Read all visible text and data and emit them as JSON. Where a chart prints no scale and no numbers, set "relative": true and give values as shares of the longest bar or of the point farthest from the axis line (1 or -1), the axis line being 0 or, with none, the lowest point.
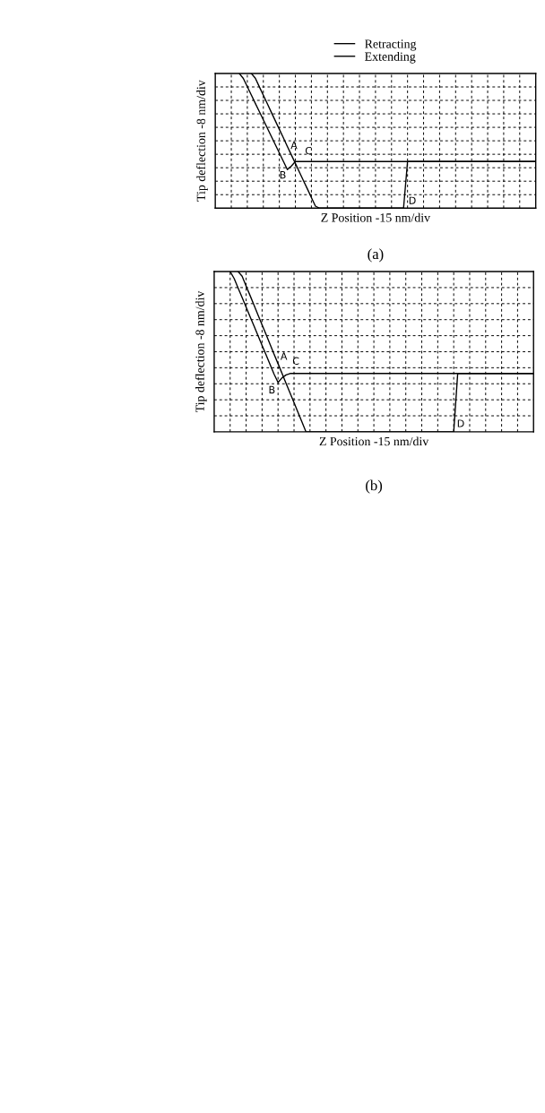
{
  "chart_data": [
    {
      "type": "line",
      "xlabel": "Z Position -15 nm/div",
      "ylabel": "Tip deflection -8 nm/div",
      "relative": true,
      "tick_labels": false,
      "grid": true,
      "legend": "top",
      "line_style": "solid",
      "categories": [
        null,
        null,
        null,
        null,
        null,
        null,
        null,
        null,
        null,
        null,
        null,
        null,
        null,
        null,
        null,
        null,
        null,
        null,
        null,
        null,
        null,
        null,
        null,
        null,
        null,
        null,
        null,
        null,
        null,
        null,
        null,
        null,
        null,
        null,
        null,
        null,
        null,
        null,
        null,
        null,
        null,
        null,
        null,
        null,
        null,
        null,
        null,
        null,
        null,
        null,
        null,
        null,
        null,
        null,
        null,
        null,
        null,
        null,
        null,
        null,
        null,
        null,
        null,
        null,
        null,
        null,
        null,
        null,
        null,
        null,
        null,
        null,
        null,
        null,
        null,
        null,
        null,
        null,
        null,
        null,
        null
      ],
      "series": [
        {
          "name": "Retracting",
          "color": "#000000",
          "values": [
            null,
            null,
            null,
            null,
            null,
            null,
            null,
            null,
            null,
            1.0,
            0.965,
            0.901,
            0.838,
            0.775,
            0.711,
            0.648,
            0.585,
            0.522,
            0.458,
            0.395,
            0.332,
            0.268,
            0.205,
            0.142,
            0.078,
            0.015,
            0,
            0,
            0,
            0,
            0,
            0,
            0,
            0,
            0,
            0,
            0,
            0,
            0,
            0,
            0,
            0,
            0,
            0,
            0,
            0,
            0,
            0,
            0.346,
            0.346,
            0.346,
            0.346,
            0.346,
            0.346,
            0.346,
            0.346,
            0.346,
            0.346,
            0.346,
            0.346,
            0.346,
            0.346,
            0.346,
            0.346,
            0.346,
            0.346,
            0.346,
            0.346,
            0.346,
            0.346,
            0.346,
            0.346,
            0.346,
            0.346,
            0.346,
            0.346,
            0.346,
            0.346,
            0.346,
            0.346,
            0.346
          ]
        },
        {
          "name": "Extending",
          "color": "#000000",
          "values": [
            null,
            null,
            null,
            null,
            null,
            null,
            1.0,
            0.963,
            0.902,
            0.84,
            0.778,
            0.717,
            0.655,
            0.594,
            0.532,
            0.471,
            0.409,
            0.348,
            0.286,
            0.313,
            0.346,
            0.346,
            0.346,
            0.346,
            0.346,
            0.346,
            0.346,
            0.346,
            0.346,
            0.346,
            0.346,
            0.346,
            0.346,
            0.346,
            0.346,
            0.346,
            0.346,
            0.346,
            0.346,
            0.346,
            0.346,
            0.346,
            0.346,
            0.346,
            0.346,
            0.346,
            0.346,
            0.346,
            0.346,
            0.346,
            0.346,
            0.346,
            0.346,
            0.346,
            0.346,
            0.346,
            0.346,
            0.346,
            0.346,
            0.346,
            0.346,
            0.346,
            0.346,
            0.346,
            0.346,
            0.346,
            0.346,
            0.346,
            0.346,
            0.346,
            0.346,
            0.346,
            0.346,
            0.346,
            0.346,
            0.346,
            0.346,
            0.346,
            0.346,
            0.346,
            0.346
          ]
        }
      ],
      "annotations": [
        "A",
        "B",
        "C",
        "D",
        "(a)"
      ]
    },
    {
      "type": "line",
      "xlabel": "Z Position -15 nm/div",
      "ylabel": "Tip deflection -8 nm/div",
      "relative": true,
      "tick_labels": false,
      "grid": true,
      "line_style": "solid",
      "categories": [
        null,
        null,
        null,
        null,
        null,
        null,
        null,
        null,
        null,
        null,
        null,
        null,
        null,
        null,
        null,
        null,
        null,
        null,
        null,
        null,
        null,
        null,
        null,
        null,
        null,
        null,
        null,
        null,
        null,
        null,
        null,
        null,
        null,
        null,
        null,
        null,
        null,
        null,
        null,
        null,
        null,
        null,
        null,
        null,
        null,
        null,
        null,
        null,
        null,
        null,
        null,
        null,
        null,
        null,
        null,
        null,
        null,
        null,
        null,
        null,
        null,
        null,
        null,
        null,
        null,
        null,
        null,
        null,
        null,
        null,
        null,
        null,
        null,
        null,
        null,
        null,
        null,
        null,
        null,
        null,
        null
      ],
      "series": [
        {
          "color": "#000000",
          "values": [
            null,
            null,
            null,
            null,
            null,
            null,
            1.0,
            0.971,
            0.91,
            0.85,
            0.789,
            0.728,
            0.668,
            0.607,
            0.546,
            0.485,
            0.425,
            0.364,
            0.303,
            0.243,
            0.182,
            0.121,
            0.061,
            0,
            0,
            0,
            0,
            0,
            0,
            0,
            0,
            0,
            0,
            0,
            0,
            0,
            0,
            0,
            0,
            0,
            0,
            0,
            0,
            0,
            0,
            0,
            0,
            0,
            0,
            0,
            0,
            0,
            0,
            0,
            0,
            0,
            0,
            0,
            0,
            0,
            0,
            0.364,
            0.364,
            0.364,
            0.364,
            0.364,
            0.364,
            0.364,
            0.364,
            0.364,
            0.364,
            0.364,
            0.364,
            0.364,
            0.364,
            0.364,
            0.364,
            0.364,
            0.364,
            0.364,
            0.364
          ]
        },
        {
          "color": "#000000",
          "values": [
            null,
            null,
            null,
            null,
            1.0,
            0.957,
            0.897,
            0.838,
            0.778,
            0.718,
            0.659,
            0.599,
            0.539,
            0.48,
            0.42,
            0.36,
            0.308,
            0.337,
            0.355,
            0.364,
            0.364,
            0.364,
            0.364,
            0.364,
            0.364,
            0.364,
            0.364,
            0.364,
            0.364,
            0.364,
            0.364,
            0.364,
            0.364,
            0.364,
            0.364,
            0.364,
            0.364,
            0.364,
            0.364,
            0.364,
            0.364,
            0.364,
            0.364,
            0.364,
            0.364,
            0.364,
            0.364,
            0.364,
            0.364,
            0.364,
            0.364,
            0.364,
            0.364,
            0.364,
            0.364,
            0.364,
            0.364,
            0.364,
            0.364,
            0.364,
            0.364,
            0.364,
            0.364,
            0.364,
            0.364,
            0.364,
            0.364,
            0.364,
            0.364,
            0.364,
            0.364,
            0.364,
            0.364,
            0.364,
            0.364,
            0.364,
            0.364,
            0.364,
            0.364,
            0.364,
            0.364
          ]
        }
      ],
      "annotations": [
        "A",
        "B",
        "C",
        "D",
        "(b)"
      ]
    }
  ]
}
